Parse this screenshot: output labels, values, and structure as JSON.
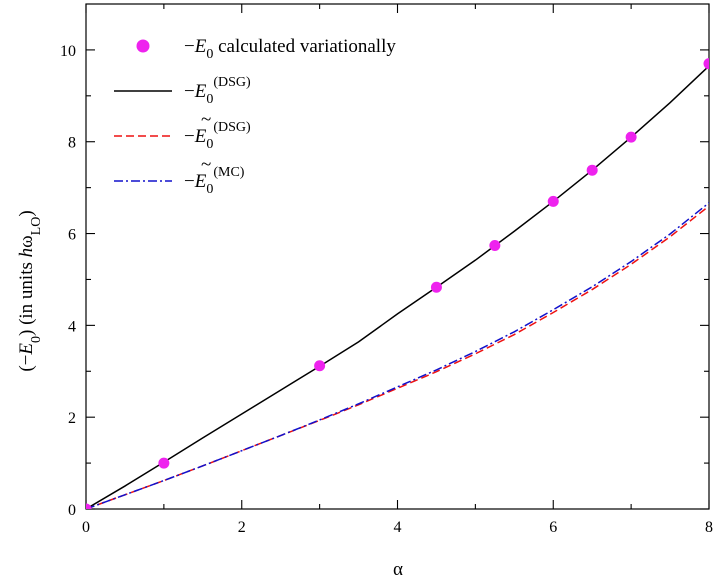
{
  "chart_data": {
    "type": "line",
    "xlabel": "α",
    "ylabel": {
      "open": "(−",
      "var": "E",
      "sub": "0",
      "close": ") (in units ",
      "hbar": "h",
      "omega": "ω",
      "omega_sub": "LO",
      "end": ")"
    },
    "xlim": [
      0,
      8
    ],
    "ylim": [
      0,
      11
    ],
    "x_ticks": [
      0,
      2,
      4,
      6,
      8
    ],
    "y_ticks": [
      0,
      2,
      4,
      6,
      8,
      10
    ],
    "grid": false,
    "legend_position": "top-left",
    "series": [
      {
        "key": "variational",
        "kind": "scatter",
        "color": "#ee22ee",
        "legend": {
          "prefix": "−",
          "var": "E",
          "sub": "0",
          "sup": "",
          "tilde": false,
          "suffix": " calculated variationally"
        },
        "x": [
          0,
          1,
          3,
          4.5,
          5.25,
          6,
          6.5,
          7,
          8
        ],
        "y": [
          0,
          1.0,
          3.12,
          4.83,
          5.74,
          6.7,
          7.38,
          8.1,
          9.7
        ]
      },
      {
        "key": "dsg",
        "kind": "line",
        "style": "solid",
        "color": "#000000",
        "legend": {
          "prefix": "−",
          "var": "E",
          "sub": "0",
          "sup": "(DSG)",
          "tilde": false,
          "suffix": ""
        },
        "x": [
          0,
          0.5,
          1,
          1.5,
          2,
          2.5,
          3,
          3.5,
          4,
          4.5,
          5,
          5.5,
          6,
          6.5,
          7,
          7.5,
          8
        ],
        "y": [
          0,
          0.5,
          1.02,
          1.55,
          2.07,
          2.59,
          3.11,
          3.64,
          4.25,
          4.83,
          5.42,
          6.05,
          6.7,
          7.38,
          8.1,
          8.85,
          9.65
        ]
      },
      {
        "key": "dsg_tilde",
        "kind": "line",
        "style": "dashed",
        "color": "#ee1111",
        "legend": {
          "prefix": "−",
          "var": "E",
          "sub": "0",
          "sup": "(DSG)",
          "tilde": true,
          "suffix": ""
        },
        "x": [
          0,
          0.5,
          1,
          1.5,
          2,
          2.5,
          3,
          3.5,
          4,
          4.5,
          5,
          5.5,
          6,
          6.5,
          7,
          7.5,
          8
        ],
        "y": [
          0,
          0.31,
          0.62,
          0.94,
          1.27,
          1.6,
          1.93,
          2.27,
          2.63,
          2.99,
          3.38,
          3.8,
          4.28,
          4.78,
          5.33,
          5.93,
          6.6
        ]
      },
      {
        "key": "mc_tilde",
        "kind": "line",
        "style": "dashdot",
        "color": "#1111cc",
        "legend": {
          "prefix": "−",
          "var": "E",
          "sub": "0",
          "sup": "(MC)",
          "tilde": true,
          "suffix": ""
        },
        "x": [
          0,
          0.5,
          1,
          1.5,
          2,
          2.5,
          3,
          3.5,
          4,
          4.5,
          5,
          5.5,
          6,
          6.5,
          7,
          7.5,
          8
        ],
        "y": [
          0,
          0.31,
          0.62,
          0.94,
          1.27,
          1.6,
          1.94,
          2.29,
          2.66,
          3.03,
          3.43,
          3.86,
          4.34,
          4.84,
          5.39,
          5.99,
          6.67
        ]
      }
    ]
  }
}
